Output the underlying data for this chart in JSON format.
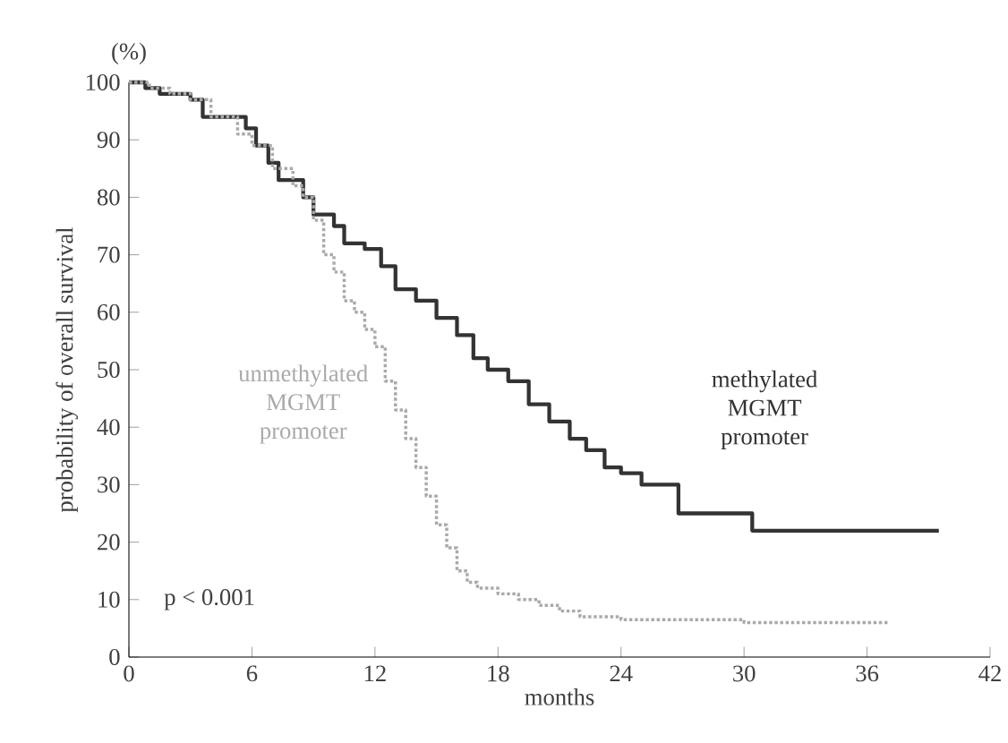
{
  "chart_data": {
    "type": "step",
    "xlabel": "months",
    "ylabel": "probability of overall survival",
    "xlim": [
      0,
      42
    ],
    "xticks": [
      0,
      6,
      12,
      18,
      24,
      30,
      36,
      42
    ],
    "ylim": [
      0,
      100
    ],
    "yticks": [
      0,
      10,
      20,
      30,
      40,
      50,
      60,
      70,
      80,
      90,
      100
    ],
    "annotations": [
      "(%)",
      "p < 0.001"
    ],
    "series": [
      {
        "name": "methylated MGMT promoter",
        "color": "#333333",
        "line_style": "solid",
        "x": [
          0,
          0.8,
          1.5,
          3,
          3.6,
          5.7,
          6.2,
          6.8,
          7.3,
          8.5,
          9,
          10,
          10.5,
          11.5,
          12.3,
          13,
          14,
          15,
          16,
          16.8,
          17.5,
          18.5,
          19.5,
          20.5,
          21.5,
          22.3,
          23.2,
          24,
          25,
          26.8,
          30.4,
          39.5
        ],
        "values": [
          100,
          99,
          98,
          97,
          94,
          92,
          89,
          86,
          83,
          80,
          77,
          75,
          72,
          71,
          68,
          64,
          62,
          59,
          56,
          52,
          50,
          48,
          44,
          41,
          38,
          36,
          33,
          32,
          30,
          25,
          22,
          22
        ]
      },
      {
        "name": "unmethylated MGMT promoter",
        "color": "#aaaaaa",
        "line_style": "dotted",
        "x": [
          0,
          1,
          2,
          3,
          4,
          5.3,
          6,
          7,
          8,
          8.5,
          9,
          9.5,
          10,
          10.5,
          11,
          11.5,
          12,
          12.5,
          13,
          13.5,
          14,
          14.5,
          15,
          15.5,
          16,
          16.5,
          17,
          18,
          19,
          20,
          21,
          22,
          24,
          30,
          37
        ],
        "values": [
          100,
          99,
          98,
          97,
          94,
          91,
          89,
          85,
          82,
          80,
          76,
          70,
          67,
          62,
          60,
          57,
          54,
          48,
          43,
          38,
          33,
          28,
          23,
          19,
          15,
          13,
          12,
          11,
          10,
          9,
          8,
          7,
          6.5,
          6,
          6
        ]
      }
    ]
  }
}
